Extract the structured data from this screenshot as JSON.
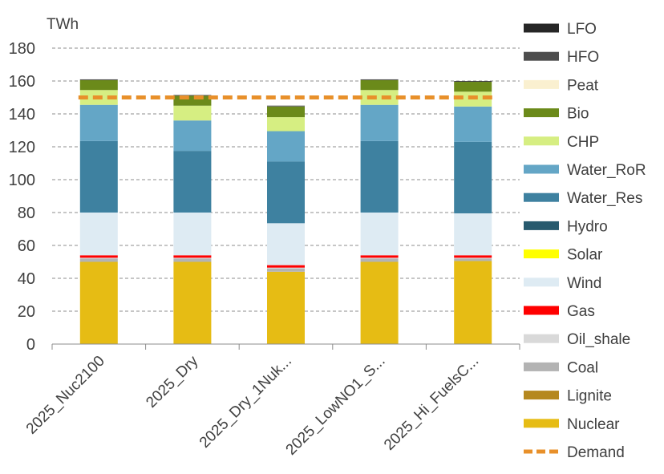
{
  "chart_data": {
    "type": "bar",
    "stacked": true,
    "ylabel": "TWh",
    "ylim": [
      0,
      180
    ],
    "yticks": [
      0,
      20,
      40,
      60,
      80,
      100,
      120,
      140,
      160,
      180
    ],
    "grid": true,
    "legend_position": "right",
    "categories": [
      "2025_Nuc2100",
      "2025_Dry",
      "2025_Dry_1Nuk...",
      "2025_LowNO1_S...",
      "2025_Hi_FuelsC..."
    ],
    "series": [
      {
        "name": "Nuclear",
        "color": "#E6BC14",
        "values": [
          50,
          50,
          44,
          50,
          50.5
        ]
      },
      {
        "name": "Lignite",
        "color": "#B5881F",
        "values": [
          0,
          0,
          0,
          0,
          0
        ]
      },
      {
        "name": "Coal",
        "color": "#B3B3B3",
        "values": [
          2,
          2,
          2,
          2,
          1.5
        ]
      },
      {
        "name": "Oil_shale",
        "color": "#D9D9D9",
        "values": [
          0.5,
          0.5,
          0.5,
          0.5,
          0.5
        ]
      },
      {
        "name": "Gas",
        "color": "#FF0000",
        "values": [
          1.5,
          1.5,
          1.5,
          1.5,
          1.5
        ]
      },
      {
        "name": "Wind",
        "color": "#DEEBF3",
        "values": [
          26,
          26,
          25.5,
          26,
          25.5
        ]
      },
      {
        "name": "Solar",
        "color": "#FFFF00",
        "values": [
          0,
          0,
          0,
          0,
          0
        ]
      },
      {
        "name": "Hydro",
        "color": "#275A6E",
        "values": [
          0,
          0,
          0,
          0,
          0
        ]
      },
      {
        "name": "Water_Res",
        "color": "#3E81A0",
        "values": [
          43.5,
          37.5,
          37.5,
          43.5,
          43.5
        ]
      },
      {
        "name": "Water_RoR",
        "color": "#64A6C6",
        "values": [
          22,
          18.5,
          18.5,
          22,
          21.5
        ]
      },
      {
        "name": "CHP",
        "color": "#D6EE82",
        "values": [
          9,
          9,
          8.5,
          9,
          9
        ]
      },
      {
        "name": "Bio",
        "color": "#6B8A1A",
        "values": [
          6,
          6,
          6.5,
          6,
          6
        ]
      },
      {
        "name": "Peat",
        "color": "#FAF0D0",
        "values": [
          0,
          0,
          0,
          0,
          0
        ]
      },
      {
        "name": "HFO",
        "color": "#4D4D4D",
        "values": [
          0.3,
          0.3,
          0.3,
          0.3,
          0.3
        ]
      },
      {
        "name": "LFO",
        "color": "#262626",
        "values": [
          0.2,
          0.2,
          0.2,
          0.2,
          0.2
        ]
      }
    ],
    "demand": {
      "name": "Demand",
      "color": "#E8902A",
      "value": 150
    }
  }
}
